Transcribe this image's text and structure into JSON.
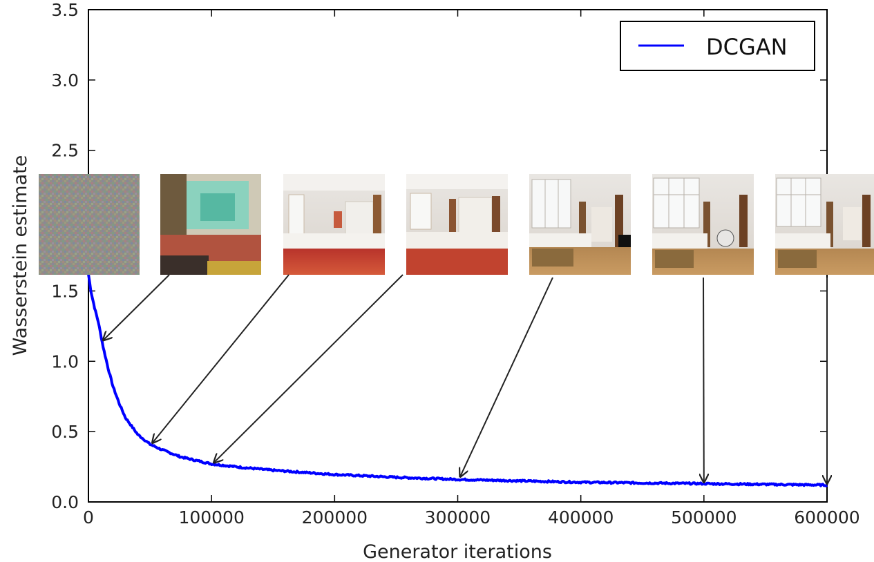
{
  "chart_data": {
    "type": "line",
    "xlabel": "Generator iterations",
    "ylabel": "Wasserstein estimate",
    "xlim": [
      0,
      600000
    ],
    "ylim": [
      0,
      3.5
    ],
    "x_ticks": [
      0,
      100000,
      200000,
      300000,
      400000,
      500000,
      600000
    ],
    "x_tick_labels": [
      "0",
      "100000",
      "200000",
      "300000",
      "400000",
      "500000",
      "600000"
    ],
    "y_ticks": [
      0,
      0.5,
      1.0,
      1.5,
      2.0,
      2.5,
      3.0,
      3.5
    ],
    "y_tick_labels": [
      "0.0",
      "0.5",
      "1.0",
      "1.5",
      "2.0",
      "2.5",
      "3.0",
      "3.5"
    ],
    "legend": {
      "position": "top-right",
      "entries": [
        "DCGAN"
      ]
    },
    "grid": false,
    "series": [
      {
        "name": "DCGAN",
        "color": "#0000ff",
        "x": [
          0,
          2000,
          5000,
          8000,
          12000,
          16000,
          20000,
          25000,
          30000,
          40000,
          50000,
          60000,
          75000,
          100000,
          125000,
          150000,
          200000,
          250000,
          300000,
          350000,
          400000,
          450000,
          500000,
          550000,
          600000
        ],
        "y": [
          1.62,
          1.5,
          1.38,
          1.28,
          1.1,
          0.95,
          0.82,
          0.7,
          0.6,
          0.48,
          0.41,
          0.37,
          0.32,
          0.27,
          0.245,
          0.225,
          0.195,
          0.175,
          0.16,
          0.15,
          0.14,
          0.135,
          0.13,
          0.125,
          0.12
        ]
      }
    ],
    "annotations": [
      {
        "type": "sample-image",
        "style": "noise",
        "arrow_target": {
          "x": 0,
          "y": 1.62
        }
      },
      {
        "type": "sample-image",
        "style": "blurry-room",
        "arrow_target": {
          "x": 12000,
          "y": 1.15
        }
      },
      {
        "type": "sample-image",
        "style": "red-bedroom",
        "arrow_target": {
          "x": 52000,
          "y": 0.42
        }
      },
      {
        "type": "sample-image",
        "style": "red-bedroom-2",
        "arrow_target": {
          "x": 102000,
          "y": 0.28
        }
      },
      {
        "type": "sample-image",
        "style": "wood-bedroom",
        "arrow_target": {
          "x": 302000,
          "y": 0.18
        }
      },
      {
        "type": "sample-image",
        "style": "wood-bedroom-2",
        "arrow_target": {
          "x": 500000,
          "y": 0.14
        }
      },
      {
        "type": "sample-image",
        "style": "wood-bedroom-3",
        "arrow_target": {
          "x": 600000,
          "y": 0.13
        }
      }
    ]
  }
}
